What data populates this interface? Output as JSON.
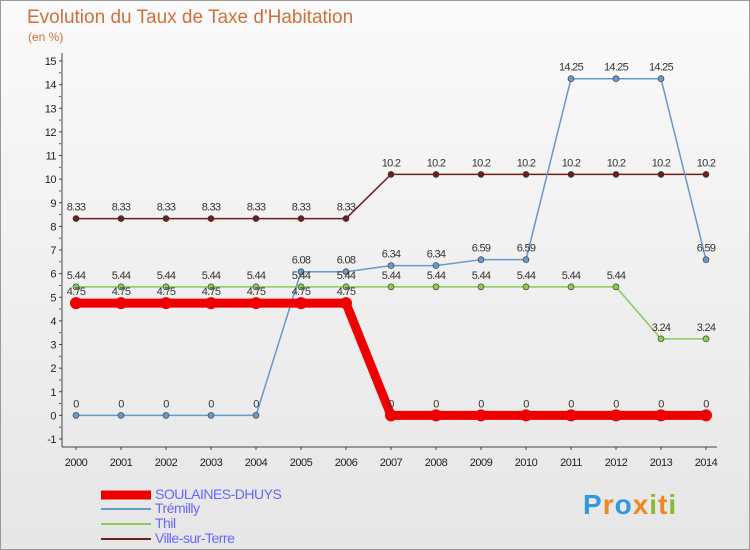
{
  "header": {
    "title": "Evolution du Taux de Taxe d'Habitation",
    "unit": "(en %)"
  },
  "chart_data": {
    "type": "line",
    "title": "Evolution du Taux de Taxe d'Habitation",
    "ylabel": "(en %)",
    "xlabel": "",
    "x": [
      "2000",
      "2001",
      "2002",
      "2003",
      "2004",
      "2005",
      "2006",
      "2007",
      "2008",
      "2009",
      "2010",
      "2011",
      "2012",
      "2013",
      "2014"
    ],
    "yticks": [
      "-1",
      "0",
      "1",
      "2",
      "3",
      "4",
      "5",
      "6",
      "7",
      "8",
      "9",
      "10",
      "11",
      "12",
      "13",
      "14",
      "15"
    ],
    "ylim": [
      -1,
      15
    ],
    "grid": false,
    "legend_position": "bottom-left",
    "series": [
      {
        "name": "Ville-sur-Terre",
        "color": "#6b2020",
        "width": 1.5,
        "values": [
          8.33,
          8.33,
          8.33,
          8.33,
          8.33,
          8.33,
          8.33,
          10.2,
          10.2,
          10.2,
          10.2,
          10.2,
          10.2,
          10.2,
          10.2
        ],
        "labels": [
          "8.33",
          "8.33",
          "8.33",
          "8.33",
          "8.33",
          "8.33",
          "8.33",
          "10.2",
          "10.2",
          "10.2",
          "10.2",
          "10.2",
          "10.2",
          "10.2",
          "10.2"
        ]
      },
      {
        "name": "Trémilly",
        "color": "#6699cc",
        "width": 1.5,
        "values": [
          0,
          0,
          0,
          0,
          0,
          6.08,
          6.08,
          6.34,
          6.34,
          6.59,
          6.59,
          14.25,
          14.25,
          14.25,
          6.59
        ],
        "labels": [
          "0",
          "0",
          "0",
          "0",
          "0",
          "6.08",
          "6.08",
          "6.34",
          "6.34",
          "6.59",
          "6.59",
          "14.25",
          "14.25",
          "14.25",
          "6.59"
        ]
      },
      {
        "name": "Thil",
        "color": "#88cc55",
        "width": 1.5,
        "values": [
          5.44,
          5.44,
          5.44,
          5.44,
          5.44,
          5.44,
          5.44,
          5.44,
          5.44,
          5.44,
          5.44,
          5.44,
          5.44,
          3.24,
          3.24
        ],
        "labels": [
          "5.44",
          "5.44",
          "5.44",
          "5.44",
          "5.44",
          "5.44",
          "5.44",
          "5.44",
          "5.44",
          "5.44",
          "5.44",
          "5.44",
          "5.44",
          "3.24",
          "3.24"
        ]
      },
      {
        "name": "SOULAINES-DHUYS",
        "color": "#ee0000",
        "width": 9,
        "values": [
          4.75,
          4.75,
          4.75,
          4.75,
          4.75,
          4.75,
          4.75,
          0,
          0,
          0,
          0,
          0,
          0,
          0,
          0
        ],
        "labels": [
          "4.75",
          "4.75",
          "4.75",
          "4.75",
          "4.75",
          "4.75",
          "4.75",
          "0",
          "0",
          "0",
          "0",
          "0",
          "0",
          "0",
          "0"
        ]
      }
    ]
  },
  "legend": [
    {
      "name": "SOULAINES-DHUYS",
      "color": "#ee0000",
      "thickness": 9
    },
    {
      "name": "Trémilly",
      "color": "#6699cc",
      "thickness": 2
    },
    {
      "name": "Thil",
      "color": "#88cc55",
      "thickness": 2
    },
    {
      "name": "Ville-sur-Terre",
      "color": "#6b2020",
      "thickness": 2
    }
  ],
  "logo": {
    "letters": [
      "P",
      "r",
      "o",
      "x",
      "i",
      "t",
      "i"
    ],
    "colors": [
      "#3399dd",
      "#ee8822",
      "#3399dd",
      "#ee8822",
      "#88bb33",
      "#ee8822",
      "#88bb33"
    ]
  }
}
